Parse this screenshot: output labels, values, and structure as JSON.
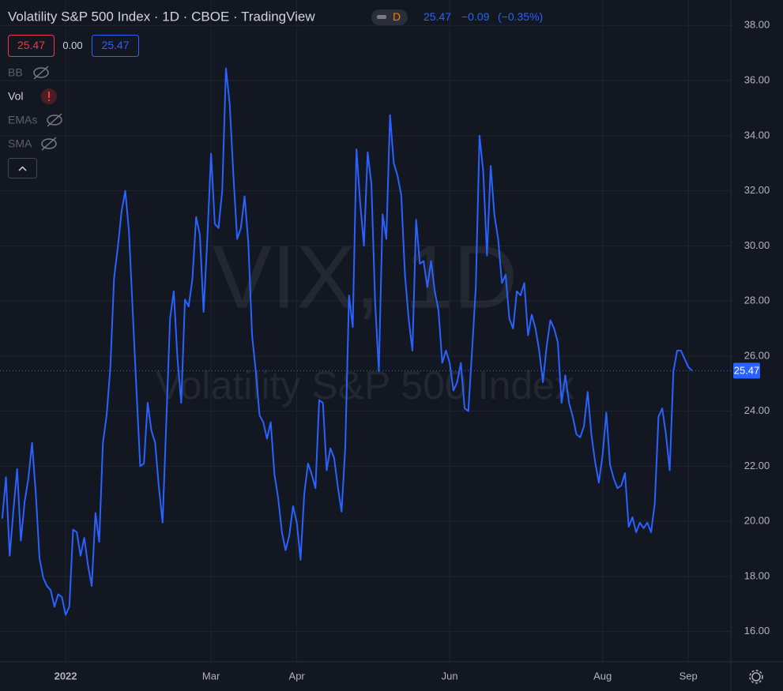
{
  "chart_data": {
    "type": "line",
    "title": "Volatility S&P 500 Index · 1D · CBOE · TradingView",
    "interval_badge": "D",
    "header_values": {
      "last": 25.47,
      "change": {
        "value": -0.09,
        "label": "−0.09"
      },
      "change_percent": {
        "value": -0.35,
        "label": "(−0.35%)"
      }
    },
    "price_boxes": [
      {
        "value": 25.47,
        "label": "25.47"
      },
      {
        "value": 0,
        "label": "0.00"
      },
      {
        "value": 25.47,
        "label": "25.47"
      }
    ],
    "indicators": [
      "BB",
      "Vol",
      "EMAs",
      "SMA"
    ],
    "watermark": [
      "VIX, 1D",
      "Volatility S&P 500 Index"
    ],
    "color": "#2962ff",
    "last_price": {
      "value": 25.47,
      "label": "25.47"
    },
    "x": [
      -17,
      -16,
      -15,
      -14,
      -13,
      -12,
      -11,
      -10,
      -9,
      -8,
      -7,
      -6,
      -5,
      -4,
      -3,
      -2,
      -1,
      0,
      1,
      2,
      3,
      4,
      5,
      6,
      7,
      8,
      9,
      10,
      11,
      12,
      13,
      14,
      15,
      16,
      17,
      18,
      19,
      20,
      21,
      22,
      23,
      24,
      25,
      26,
      27,
      28,
      29,
      30,
      31,
      32,
      33,
      34,
      35,
      36,
      37,
      38,
      39,
      40,
      41,
      42,
      43,
      44,
      45,
      46,
      47,
      48,
      49,
      50,
      51,
      52,
      53,
      54,
      55,
      56,
      57,
      58,
      59,
      60,
      61,
      62,
      63,
      64,
      65,
      66,
      67,
      68,
      69,
      70,
      71,
      72,
      73,
      74,
      75,
      76,
      77,
      78,
      79,
      80,
      81,
      82,
      83,
      84,
      85,
      86,
      87,
      88,
      89,
      90,
      91,
      92,
      93,
      94,
      95,
      96,
      97,
      98,
      99,
      100,
      101,
      102,
      103,
      104,
      105,
      106,
      107,
      108,
      109,
      110,
      111,
      112,
      113,
      114,
      115,
      116,
      117,
      118,
      119,
      120,
      121,
      122,
      123,
      124,
      125,
      126,
      127,
      128,
      129,
      130,
      131,
      132,
      133,
      134,
      135,
      136,
      137,
      138,
      139,
      140,
      141,
      142,
      143,
      144,
      145,
      146,
      147,
      148,
      149,
      150,
      151,
      152,
      153,
      154,
      155,
      156,
      157,
      158,
      159,
      160,
      161,
      162,
      163,
      164,
      165,
      166,
      167,
      168
    ],
    "values": [
      20.1,
      21.6,
      18.75,
      20.4,
      21.9,
      19.3,
      20.7,
      21.55,
      22.85,
      21.0,
      18.65,
      17.95,
      17.65,
      17.5,
      16.9,
      17.35,
      17.25,
      16.6,
      16.9,
      19.7,
      19.6,
      18.75,
      19.4,
      18.4,
      17.65,
      20.3,
      19.25,
      22.85,
      23.85,
      25.6,
      28.85,
      29.95,
      31.25,
      32.0,
      30.5,
      27.6,
      24.75,
      22.0,
      22.1,
      24.3,
      23.3,
      22.85,
      21.25,
      19.95,
      23.6,
      27.35,
      28.35,
      25.9,
      24.3,
      28.05,
      27.8,
      28.8,
      31.05,
      30.4,
      27.6,
      30.25,
      33.35,
      30.8,
      30.65,
      32.0,
      36.45,
      35.15,
      32.55,
      30.25,
      30.65,
      31.8,
      30.1,
      26.75,
      25.45,
      23.85,
      23.6,
      23.0,
      23.6,
      21.7,
      20.85,
      19.6,
      18.95,
      19.5,
      20.55,
      19.95,
      18.6,
      21.0,
      22.1,
      21.7,
      21.2,
      24.4,
      24.3,
      21.85,
      22.65,
      22.3,
      21.25,
      20.35,
      22.7,
      28.2,
      27.05,
      33.5,
      31.55,
      30.0,
      33.4,
      32.25,
      27.95,
      25.45,
      31.15,
      30.25,
      34.75,
      33.0,
      32.55,
      31.85,
      28.95,
      27.35,
      26.2,
      30.95,
      29.35,
      29.45,
      28.5,
      29.45,
      28.35,
      27.65,
      25.75,
      26.2,
      25.75,
      24.75,
      25.05,
      25.75,
      24.1,
      24.0,
      26.2,
      28.5,
      34.0,
      32.7,
      29.65,
      32.9,
      31.1,
      30.25,
      28.65,
      28.95,
      27.35,
      27.0,
      28.35,
      28.2,
      28.65,
      26.75,
      27.5,
      27.0,
      26.2,
      25.05,
      26.35,
      27.3,
      27.0,
      26.5,
      24.3,
      25.3,
      24.3,
      23.8,
      23.15,
      23.05,
      23.45,
      24.7,
      23.15,
      22.15,
      21.4,
      22.4,
      23.95,
      22.05,
      21.55,
      21.2,
      21.3,
      21.75,
      19.8,
      20.15,
      19.6,
      19.95,
      19.75,
      19.95,
      19.6,
      20.65,
      23.8,
      24.1,
      23.15,
      21.85,
      25.45,
      26.2,
      26.2,
      25.9,
      25.6,
      25.47
    ],
    "xlim": [
      -17.6,
      178.4
    ],
    "xticks": [
      {
        "value": 0,
        "label": "2022"
      },
      {
        "value": 39,
        "label": "Mar"
      },
      {
        "value": 62,
        "label": "Apr"
      },
      {
        "value": 103,
        "label": "Jun"
      },
      {
        "value": 144,
        "label": "Aug"
      },
      {
        "value": 167,
        "label": "Sep"
      }
    ],
    "ylim": [
      14.9,
      38.926
    ],
    "yticks": [
      {
        "value": 16,
        "label": "16.00"
      },
      {
        "value": 18,
        "label": "18.00"
      },
      {
        "value": 20,
        "label": "20.00"
      },
      {
        "value": 22,
        "label": "22.00"
      },
      {
        "value": 24,
        "label": "24.00"
      },
      {
        "value": 26,
        "label": "26.00"
      },
      {
        "value": 28,
        "label": "28.00"
      },
      {
        "value": 30,
        "label": "30.00"
      },
      {
        "value": 32,
        "label": "32.00"
      },
      {
        "value": 34,
        "label": "34.00"
      },
      {
        "value": 36,
        "label": "36.00"
      },
      {
        "value": 38,
        "label": "38.00"
      }
    ],
    "grid": true
  }
}
